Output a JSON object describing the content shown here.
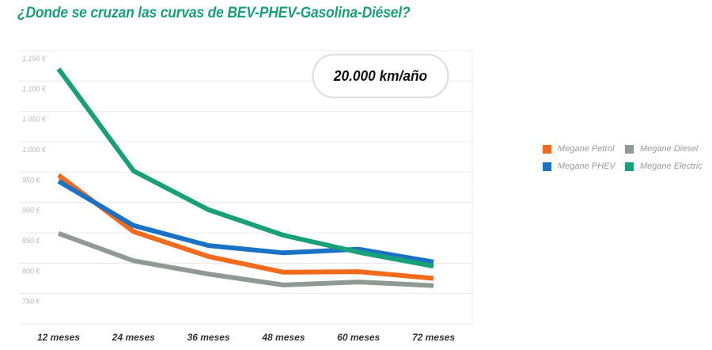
{
  "chart_data": {
    "type": "line",
    "title": "¿Donde se cruzan las curvas de BEV-PHEV-Gasolina-Diésel?",
    "annotation": "20.000 km/año",
    "categories": [
      "12 meses",
      "24 meses",
      "36 meses",
      "48 meses",
      "60 meses",
      "72 meses"
    ],
    "yticks": [
      "750 €",
      "800 €",
      "850 €",
      "900 €",
      "950 €",
      "1.000 €",
      "1.050 €",
      "1.100 €",
      "1.150 €"
    ],
    "ytick_values": [
      750,
      800,
      850,
      900,
      950,
      1000,
      1050,
      1100,
      1150
    ],
    "ylim": [
      700,
      1150
    ],
    "grid": true,
    "legend_position": "right",
    "series": [
      {
        "name": "Megane Petrol",
        "color": "#f26a1b",
        "values": [
          945,
          852,
          811,
          785,
          786,
          775
        ]
      },
      {
        "name": "Megane Diesel",
        "color": "#8f9a95",
        "values": [
          849,
          804,
          782,
          764,
          769,
          763
        ]
      },
      {
        "name": "Megane PHEV",
        "color": "#1a72c4",
        "values": [
          935,
          862,
          829,
          817,
          823,
          802
        ]
      },
      {
        "name": "Megane Electric",
        "color": "#17a07a",
        "values": [
          1120,
          952,
          888,
          846,
          818,
          795
        ]
      }
    ]
  }
}
